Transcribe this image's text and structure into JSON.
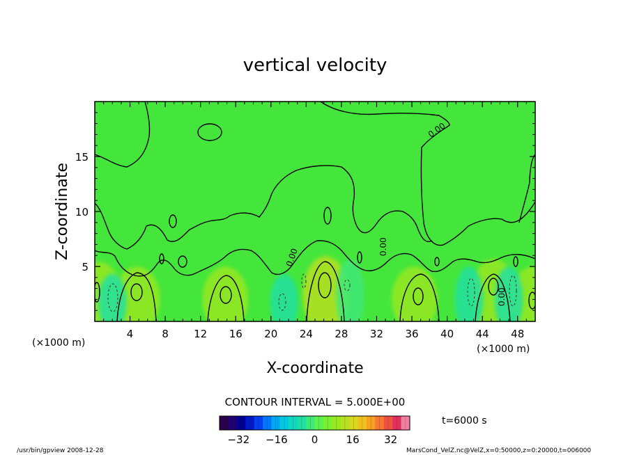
{
  "chart_data": {
    "type": "heatmap",
    "title": "vertical velocity",
    "xlabel": "X-coordinate",
    "ylabel": "Z-coordinate",
    "x_unit_left": "(×1000 m)",
    "x_unit_right": "(×1000 m)",
    "xlim": [
      0,
      50
    ],
    "ylim": [
      0,
      20
    ],
    "x_ticks": [
      4,
      8,
      12,
      16,
      20,
      24,
      28,
      32,
      36,
      40,
      44,
      48
    ],
    "y_ticks": [
      5,
      10,
      15
    ],
    "contour_interval": "CONTOUR INTERVAL = 5.000E+00",
    "contour_labels": [
      "0.00",
      "0.00",
      "0.00",
      "0.00"
    ],
    "colorbar": {
      "ticks": [
        -32,
        -16,
        0,
        16,
        32
      ],
      "range": [
        -40,
        40
      ],
      "colors": [
        "#2d004a",
        "#20006f",
        "#000090",
        "#0018c8",
        "#0040f0",
        "#0078f8",
        "#00a8f0",
        "#00c8e0",
        "#10d8c0",
        "#20e0a0",
        "#40e878",
        "#60ef50",
        "#78f030",
        "#98e820",
        "#b8e020",
        "#d8d820",
        "#f0c020",
        "#f8a020",
        "#f87830",
        "#f05040",
        "#e03060",
        "#f080a0"
      ]
    },
    "time_label": "t=6000 s",
    "footer_left": "/usr/bin/gpview  2008-12-28",
    "footer_right": "MarsCond_VelZ.nc@VelZ,x=0:50000,z=0:20000,t=006000",
    "updraft_cells": [
      {
        "x": 0.5,
        "z": 2.8,
        "w": 8
      },
      {
        "x": 4.8,
        "z": 2.5,
        "w": 10
      },
      {
        "x": 14.8,
        "z": 2.5,
        "w": 10
      },
      {
        "x": 26.2,
        "z": 3.2,
        "w": 14
      },
      {
        "x": 36.3,
        "z": 2.5,
        "w": 10
      },
      {
        "x": 45.3,
        "z": 3.0,
        "w": 10
      },
      {
        "x": 49.8,
        "z": 2.5,
        "w": 8
      }
    ],
    "downdraft_cells": [
      {
        "x": 2.0,
        "z": 2.0,
        "w": -6
      },
      {
        "x": 21.5,
        "z": 2.0,
        "w": -4
      },
      {
        "x": 29.0,
        "z": 3.0,
        "w": -3
      },
      {
        "x": 42.5,
        "z": 2.5,
        "w": -5
      },
      {
        "x": 47.0,
        "z": 2.5,
        "w": -4
      }
    ],
    "background_w": 0
  }
}
